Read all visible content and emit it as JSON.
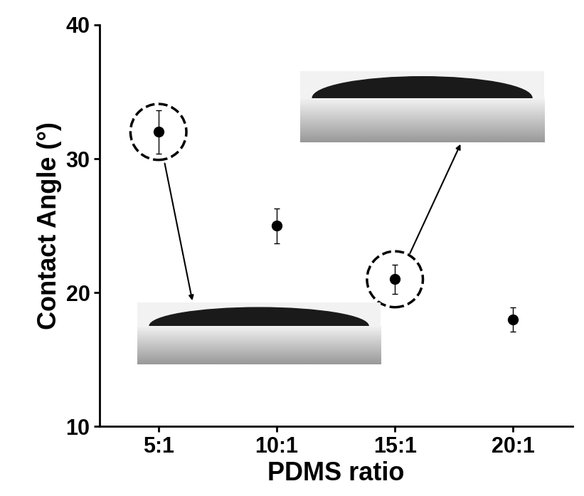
{
  "chart_data": {
    "type": "scatter",
    "x_label": "PDMS ratio",
    "y_label": "Contact Angle (°)",
    "categories": [
      "5:1",
      "10:1",
      "15:1",
      "20:1"
    ],
    "values": [
      32,
      25,
      21,
      18
    ],
    "errors": [
      1.6,
      1.3,
      1.1,
      0.9
    ],
    "color": "#000000",
    "marker": "o",
    "ylim": [
      10,
      40
    ],
    "yticks": [
      10,
      20,
      30,
      40
    ]
  }
}
